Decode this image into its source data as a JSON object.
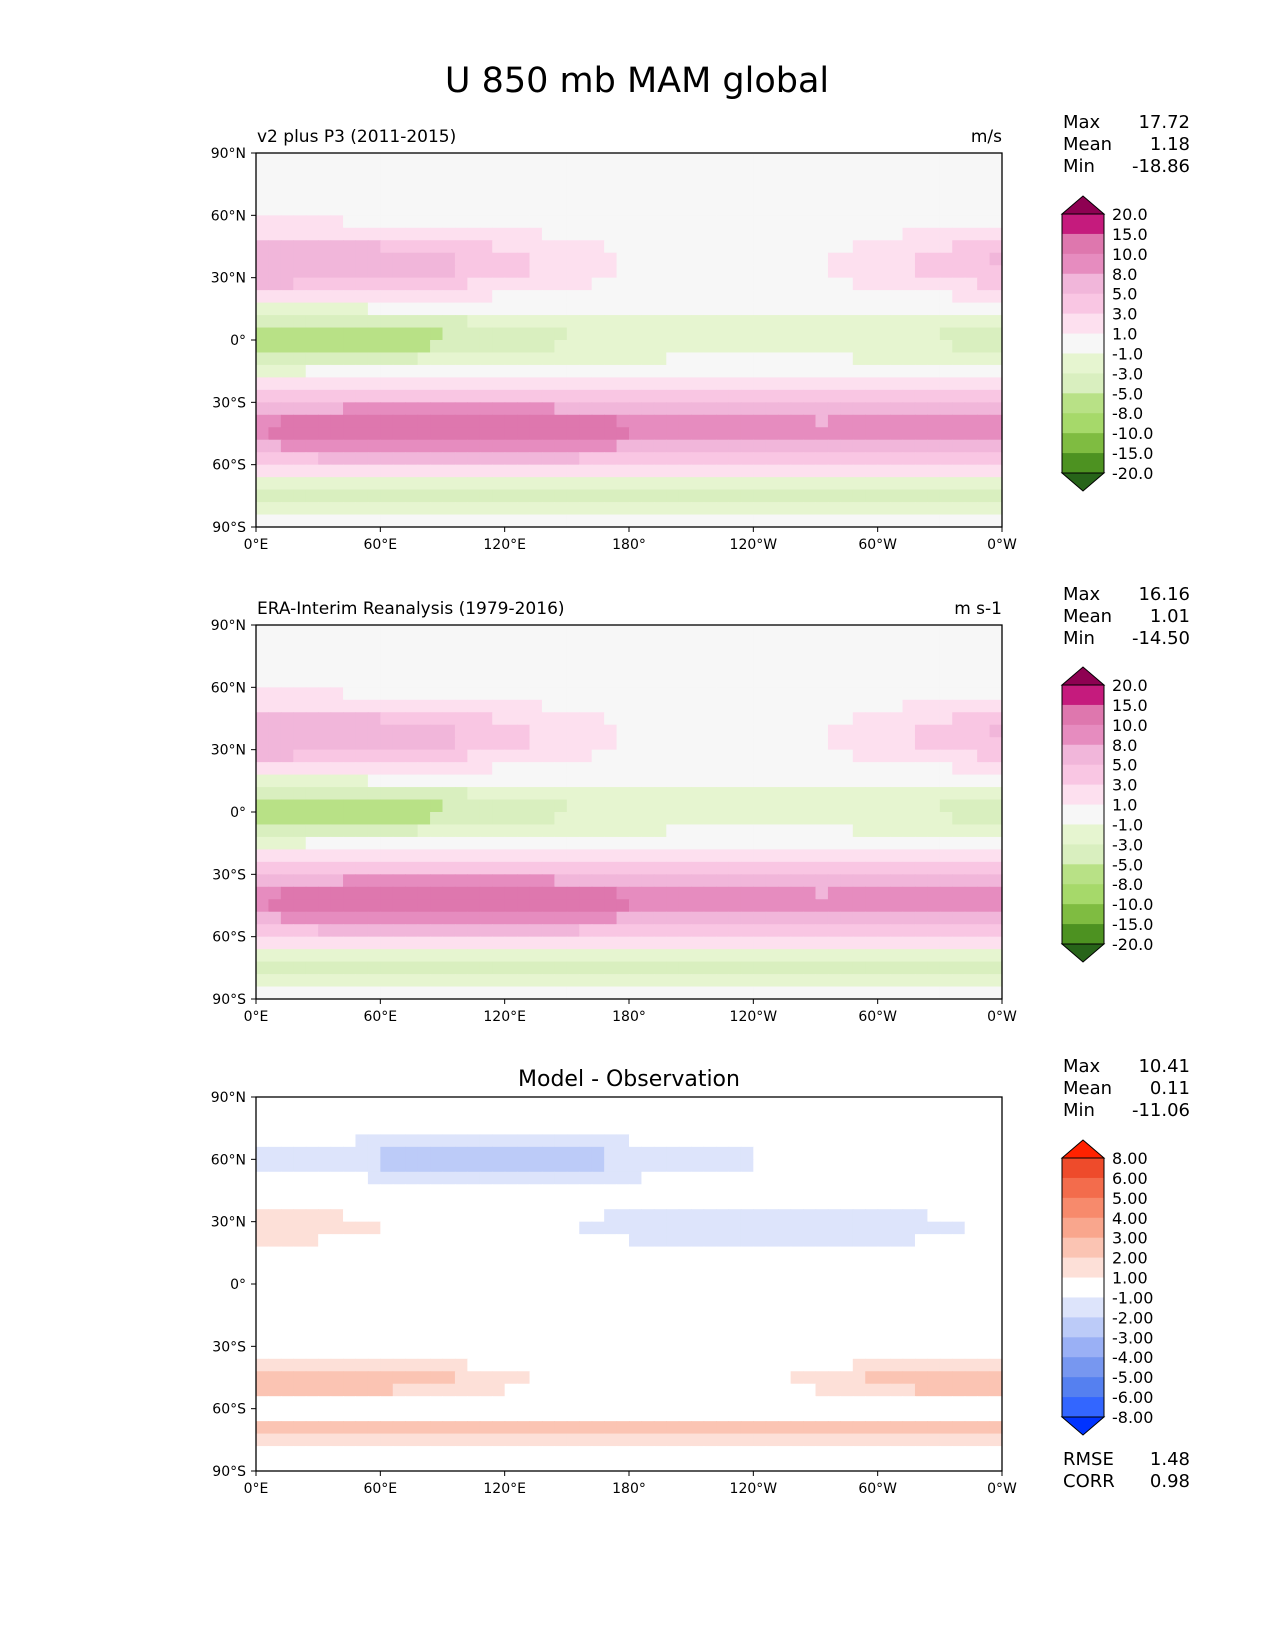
{
  "title": "U 850 mb MAM global",
  "lon_ticks": [
    "0°E",
    "60°E",
    "120°E",
    "180°",
    "120°W",
    "60°W",
    "0°W"
  ],
  "lat_ticks": [
    "90°N",
    "60°N",
    "30°N",
    "0°",
    "30°S",
    "60°S",
    "90°S"
  ],
  "colors": {
    "prgn": [
      "#276419",
      "#4d9221",
      "#7fbc41",
      "#a6d96a",
      "#b8e186",
      "#d9efbf",
      "#e6f5d0",
      "#f7f7f7",
      "#fde0ef",
      "#f9c6e3",
      "#f1b6da",
      "#e68cbf",
      "#de77ae",
      "#c51b7d",
      "#8e0152"
    ],
    "bwr": [
      "#0033ff",
      "#3366ff",
      "#5580f0",
      "#7797f0",
      "#9ab0f5",
      "#bccbf8",
      "#dde4fb",
      "#ffffff",
      "#fde0d8",
      "#fbc4b3",
      "#f9a68d",
      "#f78a6c",
      "#f36c4c",
      "#ee4b2b",
      "#ff2200"
    ]
  },
  "panels": [
    {
      "id": "model",
      "left_title": "v2 plus P3 (2011-2015)",
      "center_title": "",
      "units": "m/s",
      "stats": {
        "max_label": "Max",
        "max": "17.72",
        "mean_label": "Mean",
        "mean": "1.18",
        "min_label": "Min",
        "min": "-18.86"
      },
      "colorbar_labels": [
        "20.0",
        "15.0",
        "10.0",
        "8.0",
        "5.0",
        "3.0",
        "1.0",
        "-1.0",
        "-3.0",
        "-5.0",
        "-8.0",
        "-10.0",
        "-15.0",
        "-20.0"
      ],
      "palette": "prgn"
    },
    {
      "id": "obs",
      "left_title": "ERA-Interim Reanalysis (1979-2016)",
      "center_title": "",
      "units": "m s-1",
      "stats": {
        "max_label": "Max",
        "max": "16.16",
        "mean_label": "Mean",
        "mean": "1.01",
        "min_label": "Min",
        "min": "-14.50"
      },
      "colorbar_labels": [
        "20.0",
        "15.0",
        "10.0",
        "8.0",
        "5.0",
        "3.0",
        "1.0",
        "-1.0",
        "-3.0",
        "-5.0",
        "-8.0",
        "-10.0",
        "-15.0",
        "-20.0"
      ],
      "palette": "prgn"
    },
    {
      "id": "diff",
      "left_title": "",
      "center_title": "Model - Observation",
      "units": "",
      "stats": {
        "max_label": "Max",
        "max": "10.41",
        "mean_label": "Mean",
        "mean": "0.11",
        "min_label": "Min",
        "min": "-11.06"
      },
      "colorbar_labels": [
        "8.00",
        "6.00",
        "5.00",
        "4.00",
        "3.00",
        "2.00",
        "1.00",
        "-1.00",
        "-2.00",
        "-3.00",
        "-4.00",
        "-5.00",
        "-6.00",
        "-8.00"
      ],
      "palette": "bwr",
      "extra_stats": {
        "rmse_label": "RMSE",
        "rmse": "1.48",
        "corr_label": "CORR",
        "corr": "0.98"
      }
    }
  ]
}
